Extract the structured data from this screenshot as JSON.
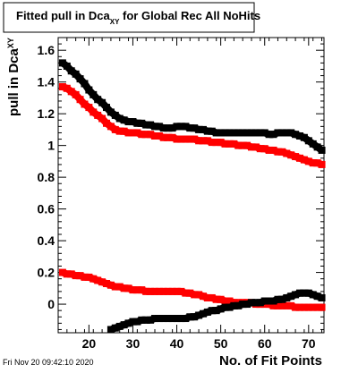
{
  "chart_data": {
    "type": "scatter",
    "title": {
      "main": "Fitted pull in Dca",
      "sub": "XY",
      "rest": " for Global Rec All NoHits"
    },
    "xlabel": "No. of Fit Points",
    "ylabel": {
      "main": "pull in Dca",
      "sub": "XY"
    },
    "timestamp": "Fri Nov 20 09:42:10 2020",
    "xlim": [
      13,
      73.5
    ],
    "ylim": [
      -0.18,
      1.68
    ],
    "x_ticks": [
      20,
      30,
      40,
      50,
      60,
      70
    ],
    "y_ticks": [
      0,
      0.2,
      0.4,
      0.6,
      0.8,
      1,
      1.2,
      1.4,
      1.6
    ],
    "x_tick_labels": [
      "20",
      "30",
      "40",
      "50",
      "60",
      "70"
    ],
    "y_tick_labels": [
      "0",
      "0.2",
      "0.4",
      "0.6",
      "0.8",
      "1",
      "1.2",
      "1.4",
      "1.6"
    ],
    "grid": false,
    "series": [
      {
        "color": "#000000",
        "marker": "square",
        "x": [
          14,
          15,
          16,
          17,
          18,
          19,
          20,
          21,
          22,
          23,
          24,
          25,
          26,
          27,
          28,
          29,
          30,
          31,
          32,
          33,
          34,
          35,
          36,
          37,
          38,
          39,
          40,
          41,
          42,
          43,
          44,
          45,
          46,
          47,
          48,
          49,
          50,
          51,
          52,
          53,
          54,
          55,
          56,
          57,
          58,
          59,
          60,
          61,
          62,
          63,
          64,
          65,
          66,
          67,
          68,
          69,
          70,
          71,
          72,
          73
        ],
        "values": [
          1.52,
          1.5,
          1.47,
          1.45,
          1.42,
          1.39,
          1.35,
          1.32,
          1.29,
          1.27,
          1.24,
          1.21,
          1.19,
          1.17,
          1.16,
          1.15,
          1.15,
          1.14,
          1.14,
          1.13,
          1.13,
          1.12,
          1.12,
          1.11,
          1.11,
          1.11,
          1.12,
          1.12,
          1.12,
          1.11,
          1.11,
          1.1,
          1.1,
          1.09,
          1.09,
          1.08,
          1.08,
          1.08,
          1.08,
          1.08,
          1.08,
          1.08,
          1.08,
          1.08,
          1.08,
          1.08,
          1.08,
          1.07,
          1.07,
          1.08,
          1.08,
          1.08,
          1.08,
          1.07,
          1.06,
          1.05,
          1.03,
          1.01,
          0.99,
          0.97
        ]
      },
      {
        "color": "#ff0000",
        "marker": "square",
        "x": [
          14,
          15,
          16,
          17,
          18,
          19,
          20,
          21,
          22,
          23,
          24,
          25,
          26,
          27,
          28,
          29,
          30,
          31,
          32,
          33,
          34,
          35,
          36,
          37,
          38,
          39,
          40,
          41,
          42,
          43,
          44,
          45,
          46,
          47,
          48,
          49,
          50,
          51,
          52,
          53,
          54,
          55,
          56,
          57,
          58,
          59,
          60,
          61,
          62,
          63,
          64,
          65,
          66,
          67,
          68,
          69,
          70,
          71,
          72,
          73
        ],
        "values": [
          1.37,
          1.36,
          1.34,
          1.32,
          1.29,
          1.26,
          1.24,
          1.21,
          1.19,
          1.17,
          1.14,
          1.12,
          1.1,
          1.09,
          1.09,
          1.08,
          1.08,
          1.08,
          1.07,
          1.07,
          1.07,
          1.06,
          1.06,
          1.05,
          1.05,
          1.05,
          1.04,
          1.04,
          1.04,
          1.04,
          1.04,
          1.03,
          1.03,
          1.03,
          1.02,
          1.02,
          1.02,
          1.01,
          1.01,
          1.01,
          1.0,
          1.0,
          1.0,
          0.99,
          0.99,
          0.98,
          0.98,
          0.97,
          0.97,
          0.96,
          0.96,
          0.95,
          0.94,
          0.93,
          0.92,
          0.91,
          0.9,
          0.89,
          0.89,
          0.88
        ]
      },
      {
        "color": "#ff0000",
        "marker": "square",
        "x": [
          14,
          15,
          16,
          17,
          18,
          19,
          20,
          21,
          22,
          23,
          24,
          25,
          26,
          27,
          28,
          29,
          30,
          31,
          32,
          33,
          34,
          35,
          36,
          37,
          38,
          39,
          40,
          41,
          42,
          43,
          44,
          45,
          46,
          47,
          48,
          49,
          50,
          51,
          52,
          53,
          54,
          55,
          56,
          57,
          58,
          59,
          60,
          61,
          62,
          63,
          64,
          65,
          66,
          67,
          68,
          69,
          70,
          71,
          72,
          73
        ],
        "values": [
          0.2,
          0.19,
          0.19,
          0.18,
          0.18,
          0.17,
          0.17,
          0.16,
          0.15,
          0.14,
          0.13,
          0.12,
          0.11,
          0.11,
          0.1,
          0.1,
          0.09,
          0.09,
          0.09,
          0.08,
          0.08,
          0.08,
          0.08,
          0.08,
          0.08,
          0.08,
          0.08,
          0.08,
          0.07,
          0.07,
          0.06,
          0.06,
          0.05,
          0.04,
          0.04,
          0.03,
          0.03,
          0.02,
          0.02,
          0.01,
          0.01,
          0.01,
          0.01,
          0.01,
          0.0,
          0.0,
          0.0,
          0.0,
          -0.01,
          -0.01,
          -0.01,
          -0.01,
          -0.01,
          -0.02,
          -0.02,
          -0.02,
          -0.02,
          -0.02,
          -0.02,
          -0.02
        ]
      },
      {
        "color": "#000000",
        "marker": "square",
        "x": [
          25,
          26,
          27,
          28,
          29,
          30,
          31,
          32,
          33,
          34,
          35,
          36,
          37,
          38,
          39,
          40,
          41,
          42,
          43,
          44,
          45,
          46,
          47,
          48,
          49,
          50,
          51,
          52,
          53,
          54,
          55,
          56,
          57,
          58,
          59,
          60,
          61,
          62,
          63,
          64,
          65,
          66,
          67,
          68,
          69,
          70,
          71,
          72,
          73
        ],
        "values": [
          -0.16,
          -0.15,
          -0.14,
          -0.13,
          -0.12,
          -0.11,
          -0.11,
          -0.1,
          -0.1,
          -0.1,
          -0.09,
          -0.09,
          -0.09,
          -0.09,
          -0.09,
          -0.09,
          -0.09,
          -0.09,
          -0.08,
          -0.08,
          -0.07,
          -0.06,
          -0.05,
          -0.04,
          -0.04,
          -0.03,
          -0.02,
          -0.02,
          -0.01,
          -0.01,
          0.0,
          0.0,
          0.01,
          0.01,
          0.01,
          0.02,
          0.02,
          0.02,
          0.03,
          0.03,
          0.04,
          0.05,
          0.06,
          0.07,
          0.07,
          0.07,
          0.06,
          0.05,
          0.04
        ]
      }
    ]
  }
}
